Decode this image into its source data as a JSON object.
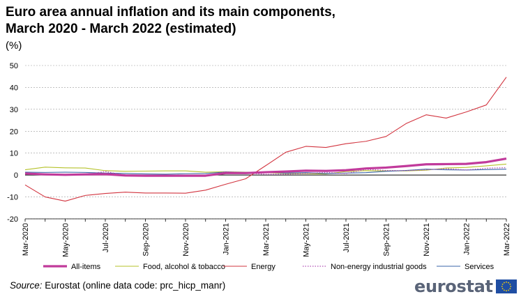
{
  "title": "Euro area annual inflation and its main components,\nMarch 2020 - March 2022 (estimated)",
  "unit": "(%)",
  "source_label": "Source:",
  "source_text": "Eurostat (online data code: prc_hicp_manr)",
  "logo_text": "eurostat",
  "chart_data": {
    "type": "line",
    "title": "Euro area annual inflation and its main components, March 2020 - March 2022 (estimated)",
    "ylabel": "(%)",
    "ylim": [
      -20,
      50
    ],
    "yticks": [
      50,
      40,
      30,
      20,
      10,
      0,
      -10,
      -20
    ],
    "grid": true,
    "legend_position": "bottom",
    "x": [
      "Mar-2020",
      "Apr-2020",
      "May-2020",
      "Jun-2020",
      "Jul-2020",
      "Aug-2020",
      "Sep-2020",
      "Oct-2020",
      "Nov-2020",
      "Dec-2020",
      "Jan-2021",
      "Feb-2021",
      "Mar-2021",
      "Apr-2021",
      "May-2021",
      "Jun-2021",
      "Jul-2021",
      "Aug-2021",
      "Sep-2021",
      "Oct-2021",
      "Nov-2021",
      "Dec-2021",
      "Jan-2022",
      "Feb-2022",
      "Mar-2022"
    ],
    "x_tick_labels": [
      "Mar-2020",
      "May-2020",
      "Jul-2020",
      "Sep-2020",
      "Nov-2020",
      "Jan-2021",
      "Mar-2021",
      "May-2021",
      "Jul-2021",
      "Sep-2021",
      "Nov-2021",
      "Jan-2022",
      "Mar-2022"
    ],
    "series": [
      {
        "name": "All-items",
        "color": "#c13a9b",
        "style": "thick",
        "values": [
          0.7,
          0.3,
          0.1,
          0.3,
          0.4,
          -0.2,
          -0.3,
          -0.3,
          -0.3,
          -0.3,
          0.9,
          0.9,
          1.3,
          1.6,
          2.0,
          1.9,
          2.2,
          3.0,
          3.4,
          4.1,
          4.9,
          5.0,
          5.1,
          5.9,
          7.5
        ]
      },
      {
        "name": "Food, alcohol & tobacco",
        "color": "#b5c22a",
        "style": "solid",
        "values": [
          2.4,
          3.6,
          3.3,
          3.2,
          2.0,
          1.7,
          1.8,
          1.9,
          1.9,
          1.3,
          1.5,
          1.3,
          1.1,
          0.7,
          0.6,
          0.5,
          1.6,
          2.0,
          1.9,
          1.9,
          2.2,
          3.2,
          3.5,
          4.2,
          5.0
        ]
      },
      {
        "name": "Energy",
        "color": "#d2343f",
        "style": "solid",
        "values": [
          -4.5,
          -10.0,
          -11.9,
          -9.3,
          -8.4,
          -7.8,
          -8.2,
          -8.2,
          -8.3,
          -6.9,
          -4.2,
          -1.7,
          4.3,
          10.4,
          13.1,
          12.6,
          14.3,
          15.4,
          17.6,
          23.5,
          27.5,
          26.0,
          28.8,
          32.0,
          44.7
        ]
      },
      {
        "name": "Non-energy industrial goods",
        "color": "#b04db4",
        "style": "dotted",
        "values": [
          0.5,
          0.2,
          0.2,
          0.2,
          1.6,
          -0.1,
          -0.1,
          -0.1,
          -0.3,
          -0.5,
          1.5,
          1.0,
          0.3,
          0.4,
          0.7,
          1.2,
          0.7,
          2.6,
          2.1,
          2.0,
          2.4,
          2.9,
          2.3,
          3.1,
          3.4
        ]
      },
      {
        "name": "Services",
        "color": "#3a66a8",
        "style": "solid",
        "values": [
          1.3,
          1.2,
          1.3,
          1.2,
          0.9,
          0.7,
          0.5,
          0.4,
          0.6,
          0.7,
          1.4,
          1.2,
          1.3,
          0.9,
          1.1,
          0.7,
          0.9,
          1.1,
          1.7,
          2.1,
          2.7,
          2.4,
          2.3,
          2.5,
          2.7
        ]
      }
    ]
  }
}
